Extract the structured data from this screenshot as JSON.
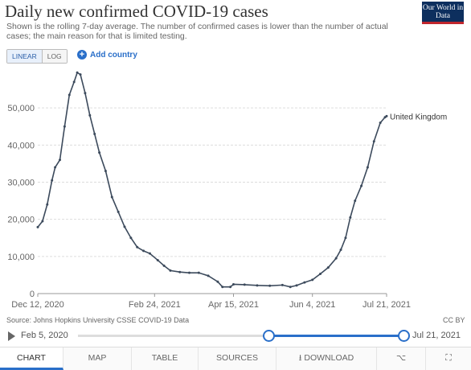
{
  "header": {
    "title": "Daily new confirmed COVID-19 cases",
    "subtitle": "Shown is the rolling 7-day average. The number of confirmed cases is lower than the number of actual cases; the main reason for that is limited testing.",
    "logo": "Our World in Data"
  },
  "controls": {
    "scale_options": [
      "LINEAR",
      "LOG"
    ],
    "scale_selected": "LINEAR",
    "add_country": "Add country"
  },
  "chart_data": {
    "type": "line",
    "title": "Daily new confirmed COVID-19 cases",
    "x_type": "date",
    "xlim": [
      "2020-12-12",
      "2021-07-21"
    ],
    "ylim": [
      0,
      60000
    ],
    "y_ticks": [
      0,
      10000,
      20000,
      30000,
      40000,
      50000
    ],
    "y_tick_labels": [
      "0",
      "10,000",
      "20,000",
      "30,000",
      "40,000",
      "50,000"
    ],
    "x_ticks": [
      "2020-12-12",
      "2021-02-24",
      "2021-04-15",
      "2021-06-04",
      "2021-07-21"
    ],
    "x_tick_labels": [
      "Dec 12, 2020",
      "Feb 24, 2021",
      "Apr 15, 2021",
      "Jun 4, 2021",
      "Jul 21, 2021"
    ],
    "grid": "horizontal",
    "color": "#3c4a5c",
    "series": [
      {
        "name": "United Kingdom",
        "points": [
          [
            "2020-12-12",
            17900
          ],
          [
            "2020-12-15",
            19500
          ],
          [
            "2020-12-18",
            24000
          ],
          [
            "2020-12-21",
            30500
          ],
          [
            "2020-12-23",
            34000
          ],
          [
            "2020-12-26",
            36000
          ],
          [
            "2020-12-29",
            45000
          ],
          [
            "2021-01-01",
            53500
          ],
          [
            "2021-01-04",
            57000
          ],
          [
            "2021-01-06",
            59500
          ],
          [
            "2021-01-08",
            59000
          ],
          [
            "2021-01-11",
            54000
          ],
          [
            "2021-01-14",
            48000
          ],
          [
            "2021-01-17",
            43000
          ],
          [
            "2021-01-20",
            38000
          ],
          [
            "2021-01-24",
            33000
          ],
          [
            "2021-01-28",
            26000
          ],
          [
            "2021-02-01",
            22000
          ],
          [
            "2021-02-05",
            18000
          ],
          [
            "2021-02-09",
            15000
          ],
          [
            "2021-02-13",
            12500
          ],
          [
            "2021-02-17",
            11500
          ],
          [
            "2021-02-21",
            10800
          ],
          [
            "2021-02-26",
            9000
          ],
          [
            "2021-03-02",
            7500
          ],
          [
            "2021-03-06",
            6200
          ],
          [
            "2021-03-12",
            5800
          ],
          [
            "2021-03-18",
            5600
          ],
          [
            "2021-03-24",
            5600
          ],
          [
            "2021-03-30",
            4800
          ],
          [
            "2021-04-05",
            3200
          ],
          [
            "2021-04-08",
            1800
          ],
          [
            "2021-04-13",
            1800
          ],
          [
            "2021-04-15",
            2500
          ],
          [
            "2021-04-22",
            2400
          ],
          [
            "2021-04-30",
            2200
          ],
          [
            "2021-05-08",
            2100
          ],
          [
            "2021-05-16",
            2300
          ],
          [
            "2021-05-21",
            1800
          ],
          [
            "2021-05-25",
            2200
          ],
          [
            "2021-05-30",
            3000
          ],
          [
            "2021-06-04",
            3700
          ],
          [
            "2021-06-09",
            5300
          ],
          [
            "2021-06-14",
            7000
          ],
          [
            "2021-06-19",
            9500
          ],
          [
            "2021-06-22",
            11800
          ],
          [
            "2021-06-25",
            15000
          ],
          [
            "2021-06-28",
            20500
          ],
          [
            "2021-07-01",
            25000
          ],
          [
            "2021-07-05",
            29000
          ],
          [
            "2021-07-09",
            34000
          ],
          [
            "2021-07-13",
            41000
          ],
          [
            "2021-07-17",
            46000
          ],
          [
            "2021-07-20",
            47500
          ],
          [
            "2021-07-21",
            47800
          ]
        ]
      }
    ]
  },
  "footer": {
    "source": "Source: Johns Hopkins University CSSE COVID-19 Data",
    "license": "CC BY"
  },
  "timeline": {
    "start": "Feb 5, 2020",
    "end": "Jul 21, 2021",
    "selection_start_fraction": 0.585,
    "selection_end_fraction": 1.0
  },
  "tabs": {
    "chart": "CHART",
    "map": "MAP",
    "table": "TABLE",
    "sources": "SOURCES",
    "download": "DOWNLOAD"
  }
}
